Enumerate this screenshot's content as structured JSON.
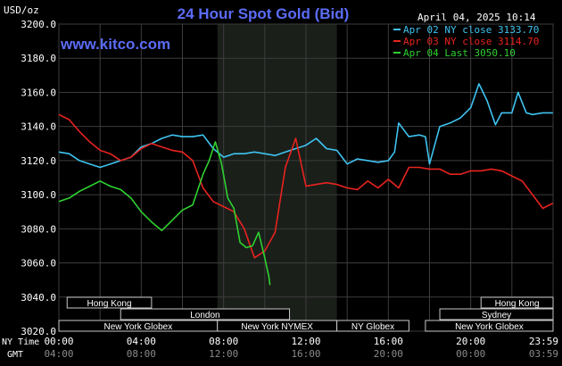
{
  "title": "24 Hour Spot Gold (Bid)",
  "units": "USD/oz",
  "date": "April 04, 2025 10:14",
  "watermark": "www.kitco.com",
  "legend": [
    {
      "label": "Apr 02 NY close 3133.70",
      "color": "#3fc3f0"
    },
    {
      "label": "Apr 03 NY close 3114.70",
      "color": "#e8231e"
    },
    {
      "label": "Apr 04 Last 3050.10",
      "color": "#2fd130"
    }
  ],
  "time_axis": {
    "ny_label": "NY Time",
    "gmt_label": "GMT",
    "ny_ticks": [
      "00:00",
      "04:00",
      "08:00",
      "12:00",
      "16:00",
      "20:00",
      "23:59"
    ],
    "gmt_ticks": [
      "04:00",
      "08:00",
      "12:00",
      "16:00",
      "20:00",
      "00:00",
      "03:59"
    ]
  },
  "markets": [
    {
      "label": "Hong Kong",
      "start_h": 0.4,
      "end_h": 4.5
    },
    {
      "label": "London",
      "start_h": 3.0,
      "end_h": 11.2
    },
    {
      "label": "New York Globex",
      "start_h": 0.0,
      "end_h": 7.7
    },
    {
      "label": "New York NYMEX",
      "start_h": 7.7,
      "end_h": 13.5
    },
    {
      "label": "NY Globex",
      "start_h": 13.5,
      "end_h": 17.0
    },
    {
      "label": "Hong Kong",
      "start_h": 20.5,
      "end_h": 24.0
    },
    {
      "label": "Sydney",
      "start_h": 18.5,
      "end_h": 24.0
    },
    {
      "label": "New York Globex",
      "start_h": 17.8,
      "end_h": 24.0
    }
  ],
  "chart_data": {
    "type": "line",
    "title": "24 Hour Spot Gold (Bid)",
    "ylabel": "USD/oz",
    "xlim": [
      0,
      24
    ],
    "ylim": [
      3020,
      3200
    ],
    "yticks": [
      3200.0,
      3180.0,
      3160.0,
      3140.0,
      3120.0,
      3100.0,
      3080.0,
      3060.0,
      3040.0,
      3020.0
    ],
    "grid": true,
    "legend_position": "top-right",
    "shaded_period_hours": [
      7.7,
      13.5
    ],
    "series": [
      {
        "name": "Apr 02 NY close 3133.70",
        "color": "#3fc3f0",
        "x": [
          0,
          0.5,
          1.0,
          1.5,
          2.0,
          2.5,
          3.0,
          3.5,
          4.0,
          4.5,
          5.0,
          5.5,
          6.0,
          6.5,
          7.0,
          7.5,
          8.0,
          8.5,
          9.0,
          9.5,
          10.0,
          10.5,
          11.0,
          11.5,
          12.0,
          12.5,
          13.0,
          13.5,
          14.0,
          14.5,
          15.0,
          15.5,
          16.0,
          16.3,
          16.5,
          17.0,
          17.5,
          17.8,
          18.0,
          18.5,
          19.0,
          19.5,
          20.0,
          20.4,
          20.8,
          21.2,
          21.5,
          22.0,
          22.3,
          22.7,
          23.0,
          23.5,
          23.99
        ],
        "y": [
          3125,
          3124,
          3120,
          3118,
          3116,
          3118,
          3120,
          3122,
          3128,
          3130,
          3133,
          3135,
          3134,
          3134,
          3135,
          3127,
          3122,
          3124,
          3124,
          3125,
          3124,
          3123,
          3125,
          3127,
          3129,
          3133,
          3127,
          3126,
          3118,
          3121,
          3120,
          3119,
          3120,
          3125,
          3142,
          3134,
          3135,
          3134,
          3118,
          3140,
          3142,
          3145,
          3151,
          3165,
          3155,
          3141,
          3148,
          3148,
          3160,
          3148,
          3147,
          3148,
          3148
        ]
      },
      {
        "name": "Apr 03 NY close 3114.70",
        "color": "#e8231e",
        "x": [
          0,
          0.5,
          1.0,
          1.5,
          2.0,
          2.5,
          3.0,
          3.5,
          4.0,
          4.5,
          5.0,
          5.5,
          6.0,
          6.5,
          7.0,
          7.5,
          8.0,
          8.5,
          9.0,
          9.5,
          10.0,
          10.5,
          11.0,
          11.5,
          12.0,
          12.5,
          13.0,
          13.5,
          14.0,
          14.5,
          15.0,
          15.5,
          16.0,
          16.5,
          17.0,
          17.5,
          18.0,
          18.5,
          19.0,
          19.5,
          20.0,
          20.5,
          21.0,
          21.5,
          22.0,
          22.5,
          23.0,
          23.5,
          23.99
        ],
        "y": [
          3147,
          3144,
          3137,
          3131,
          3126,
          3124,
          3120,
          3122,
          3127,
          3130,
          3128,
          3126,
          3125,
          3120,
          3104,
          3096,
          3093,
          3090,
          3080,
          3063,
          3067,
          3078,
          3116,
          3133,
          3105,
          3106,
          3107,
          3106,
          3104,
          3103,
          3108,
          3104,
          3109,
          3104,
          3116,
          3116,
          3115,
          3115,
          3112,
          3112,
          3114,
          3114,
          3115,
          3114,
          3111,
          3108,
          3100,
          3092,
          3095
        ]
      },
      {
        "name": "Apr 04 Last 3050.10",
        "color": "#2fd130",
        "x": [
          0,
          0.5,
          1.0,
          1.5,
          2.0,
          2.5,
          3.0,
          3.5,
          4.0,
          4.5,
          5.0,
          5.5,
          6.0,
          6.5,
          7.0,
          7.3,
          7.6,
          7.9,
          8.2,
          8.5,
          8.8,
          9.1,
          9.4,
          9.7,
          10.0,
          10.2,
          10.25
        ],
        "y": [
          3096,
          3098,
          3102,
          3105,
          3108,
          3105,
          3103,
          3098,
          3090,
          3084,
          3079,
          3085,
          3091,
          3094,
          3112,
          3120,
          3131,
          3118,
          3098,
          3092,
          3072,
          3069,
          3070,
          3078,
          3063,
          3052,
          3047
        ]
      }
    ]
  }
}
